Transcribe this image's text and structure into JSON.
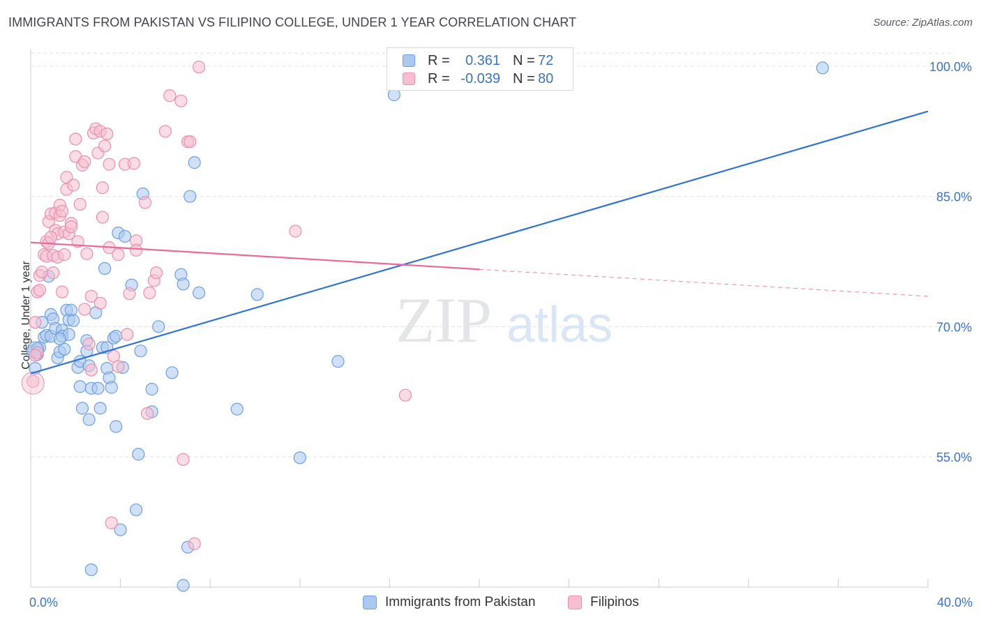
{
  "title": "IMMIGRANTS FROM PAKISTAN VS FILIPINO COLLEGE, UNDER 1 YEAR CORRELATION CHART",
  "source": "Source: ZipAtlas.com",
  "watermark": {
    "zip": "ZIP",
    "atlas": "atlas"
  },
  "legend": {
    "rows": [
      {
        "r_label": "R =",
        "r_value": "0.361",
        "n_label": "N =",
        "n_value": "72"
      },
      {
        "r_label": "R =",
        "r_value": "-0.039",
        "n_label": "N =",
        "n_value": "80"
      }
    ]
  },
  "bottom_legend": {
    "series1": "Immigrants from Pakistan",
    "series2": "Filipinos"
  },
  "colors": {
    "blue_fill": "#aac8f0",
    "blue_stroke": "#6f9fdc",
    "blue_line": "#2f73cf",
    "pink_fill": "#f6bfd0",
    "pink_stroke": "#ea8fad",
    "pink_line": "#e8699a",
    "tick_label": "#3a74c9",
    "grid": "#e1e3e8"
  },
  "chart_data": {
    "type": "scatter",
    "title": "IMMIGRANTS FROM PAKISTAN VS FILIPINO COLLEGE, UNDER 1 YEAR CORRELATION CHART",
    "xlabel": "",
    "ylabel": "College, Under 1 year",
    "xlim": [
      0,
      40
    ],
    "ylim": [
      40,
      102
    ],
    "x_tick_labels": [
      "0.0%",
      "40.0%"
    ],
    "y_ticks": [
      55,
      70,
      85,
      100
    ],
    "y_tick_labels": [
      "55.0%",
      "70.0%",
      "85.0%",
      "100.0%"
    ],
    "grid": true,
    "legend_position": "top-center",
    "series": [
      {
        "name": "Immigrants from Pakistan",
        "R": 0.361,
        "N": 72,
        "trend": {
          "x": [
            0,
            40
          ],
          "y": [
            64.6,
            94.8
          ],
          "solid_until": 40
        },
        "points": [
          [
            0.1,
            67.2
          ],
          [
            0.2,
            65.2
          ],
          [
            0.3,
            66.8
          ],
          [
            0.4,
            67.6
          ],
          [
            0.5,
            70.5
          ],
          [
            0.6,
            68.8
          ],
          [
            0.7,
            69.0
          ],
          [
            0.8,
            75.8
          ],
          [
            0.9,
            68.9
          ],
          [
            0.9,
            71.4
          ],
          [
            1.0,
            70.9
          ],
          [
            1.1,
            69.8
          ],
          [
            1.2,
            66.4
          ],
          [
            1.3,
            67.1
          ],
          [
            1.4,
            69.6
          ],
          [
            1.4,
            68.9
          ],
          [
            1.5,
            67.4
          ],
          [
            1.6,
            71.9
          ],
          [
            1.7,
            70.8
          ],
          [
            1.7,
            69.1
          ],
          [
            1.8,
            71.9
          ],
          [
            1.9,
            70.7
          ],
          [
            2.1,
            65.3
          ],
          [
            2.2,
            63.1
          ],
          [
            2.2,
            66.0
          ],
          [
            2.3,
            60.6
          ],
          [
            2.5,
            67.2
          ],
          [
            2.5,
            68.4
          ],
          [
            2.6,
            65.5
          ],
          [
            2.6,
            59.3
          ],
          [
            2.7,
            62.9
          ],
          [
            2.9,
            71.6
          ],
          [
            3.0,
            62.9
          ],
          [
            3.1,
            60.6
          ],
          [
            3.2,
            67.6
          ],
          [
            3.3,
            76.7
          ],
          [
            3.4,
            67.6
          ],
          [
            3.4,
            65.2
          ],
          [
            3.5,
            64.1
          ],
          [
            3.6,
            63.0
          ],
          [
            3.7,
            68.7
          ],
          [
            3.8,
            68.9
          ],
          [
            3.8,
            58.5
          ],
          [
            3.9,
            80.8
          ],
          [
            4.0,
            46.6
          ],
          [
            4.1,
            65.3
          ],
          [
            4.2,
            80.4
          ],
          [
            4.5,
            74.8
          ],
          [
            4.7,
            48.9
          ],
          [
            4.8,
            55.3
          ],
          [
            4.9,
            67.2
          ],
          [
            5.0,
            85.3
          ],
          [
            5.4,
            62.8
          ],
          [
            5.4,
            60.2
          ],
          [
            5.7,
            70.0
          ],
          [
            6.3,
            64.7
          ],
          [
            6.7,
            76.0
          ],
          [
            6.8,
            74.9
          ],
          [
            7.0,
            44.6
          ],
          [
            7.1,
            85.0
          ],
          [
            7.3,
            88.9
          ],
          [
            7.5,
            73.9
          ],
          [
            9.2,
            60.5
          ],
          [
            10.1,
            73.7
          ],
          [
            12.0,
            54.9
          ],
          [
            13.7,
            66.0
          ],
          [
            16.2,
            96.7
          ],
          [
            35.3,
            99.8
          ],
          [
            2.7,
            42.0
          ],
          [
            6.8,
            40.2
          ],
          [
            0.3,
            67.5
          ],
          [
            1.3,
            68.6
          ]
        ]
      },
      {
        "name": "Filipinos",
        "R": -0.039,
        "N": 80,
        "trend": {
          "x": [
            0,
            40
          ],
          "y": [
            79.7,
            73.5
          ],
          "solid_until": 20
        },
        "points": [
          [
            0.1,
            63.7
          ],
          [
            0.2,
            70.5
          ],
          [
            0.3,
            67.0
          ],
          [
            0.3,
            74.0
          ],
          [
            0.4,
            74.2
          ],
          [
            0.4,
            75.9
          ],
          [
            0.5,
            76.3
          ],
          [
            0.6,
            78.3
          ],
          [
            0.7,
            79.8
          ],
          [
            0.7,
            78.1
          ],
          [
            0.8,
            79.6
          ],
          [
            0.8,
            82.1
          ],
          [
            0.9,
            83.0
          ],
          [
            1.0,
            78.2
          ],
          [
            1.0,
            76.2
          ],
          [
            1.1,
            83.1
          ],
          [
            1.1,
            81.1
          ],
          [
            1.2,
            80.7
          ],
          [
            1.2,
            78.0
          ],
          [
            1.3,
            84.0
          ],
          [
            1.3,
            82.8
          ],
          [
            1.4,
            83.3
          ],
          [
            1.5,
            80.9
          ],
          [
            1.5,
            78.3
          ],
          [
            1.6,
            87.2
          ],
          [
            1.6,
            85.8
          ],
          [
            1.7,
            80.7
          ],
          [
            1.8,
            81.9
          ],
          [
            1.8,
            81.5
          ],
          [
            1.9,
            86.3
          ],
          [
            2.0,
            89.6
          ],
          [
            2.0,
            91.6
          ],
          [
            2.1,
            79.8
          ],
          [
            2.2,
            84.1
          ],
          [
            2.3,
            88.6
          ],
          [
            2.4,
            89.0
          ],
          [
            2.5,
            78.4
          ],
          [
            2.6,
            68.0
          ],
          [
            2.7,
            73.5
          ],
          [
            2.7,
            65.0
          ],
          [
            2.8,
            92.3
          ],
          [
            2.9,
            92.8
          ],
          [
            3.0,
            90.0
          ],
          [
            3.1,
            92.5
          ],
          [
            3.2,
            86.0
          ],
          [
            3.2,
            82.6
          ],
          [
            3.3,
            90.8
          ],
          [
            3.4,
            92.2
          ],
          [
            3.5,
            88.7
          ],
          [
            3.5,
            79.1
          ],
          [
            3.6,
            47.4
          ],
          [
            3.7,
            66.6
          ],
          [
            3.9,
            65.4
          ],
          [
            3.9,
            78.3
          ],
          [
            4.2,
            88.7
          ],
          [
            4.4,
            73.8
          ],
          [
            4.6,
            88.8
          ],
          [
            4.7,
            79.9
          ],
          [
            4.7,
            78.8
          ],
          [
            5.1,
            84.3
          ],
          [
            5.2,
            60.0
          ],
          [
            5.3,
            73.9
          ],
          [
            5.5,
            75.3
          ],
          [
            5.6,
            76.2
          ],
          [
            6.0,
            92.5
          ],
          [
            6.2,
            96.6
          ],
          [
            6.7,
            96.0
          ],
          [
            6.8,
            54.7
          ],
          [
            7.0,
            91.3
          ],
          [
            7.1,
            91.3
          ],
          [
            7.3,
            45.0
          ],
          [
            7.5,
            99.9
          ],
          [
            11.8,
            81.0
          ],
          [
            16.7,
            62.1
          ],
          [
            2.4,
            72.0
          ],
          [
            1.4,
            74.0
          ],
          [
            0.9,
            80.3
          ],
          [
            3.1,
            72.7
          ],
          [
            4.3,
            69.1
          ],
          [
            0.2,
            66.7
          ]
        ]
      }
    ]
  }
}
